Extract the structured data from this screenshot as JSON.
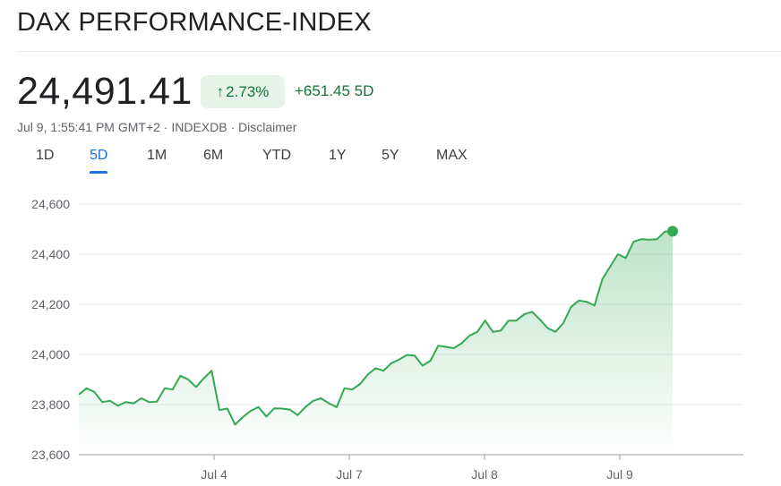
{
  "header": {
    "title": "DAX PERFORMANCE-INDEX",
    "price": "24,491.41",
    "change_pct": "2.73%",
    "change_abs": "+651.45",
    "period": "5D",
    "timestamp": "Jul 9, 1:55:41 PM GMT+2",
    "source": "INDEXDB",
    "disclaimer": "Disclaimer",
    "up_arrow": "arrow-up-icon"
  },
  "tabs": [
    "1D",
    "5D",
    "1M",
    "6M",
    "YTD",
    "1Y",
    "5Y",
    "MAX"
  ],
  "active_tab": "5D",
  "colors": {
    "line": "#34a853",
    "up_text": "#137333",
    "badge_bg": "#e6f4ea",
    "accent": "#1a73e8"
  },
  "chart_data": {
    "type": "area",
    "ylim": [
      23600,
      24600
    ],
    "yticks": [
      23600,
      23800,
      24000,
      24200,
      24400,
      24600
    ],
    "ytick_labels": [
      "23,600",
      "23,800",
      "24,000",
      "24,200",
      "24,400",
      "24,600"
    ],
    "xtick_labels": [
      "Jul 4",
      "Jul 7",
      "Jul 8",
      "Jul 9"
    ],
    "grid": true,
    "series": [
      {
        "values": [
          23840,
          23865,
          23850,
          23810,
          23815,
          23795,
          23810,
          23805,
          23825,
          23810,
          23812,
          23865,
          23860,
          23915,
          23900,
          23870,
          23905,
          23935,
          23778,
          23784,
          23720,
          23750,
          23775,
          23790,
          23752,
          23785,
          23784,
          23780,
          23758,
          23790,
          23815,
          23825,
          23805,
          23790,
          23865,
          23860,
          23882,
          23920,
          23945,
          23935,
          23965,
          23980,
          23998,
          23995,
          23955,
          23975,
          24035,
          24030,
          24025,
          24045,
          24075,
          24090,
          24135,
          24090,
          24095,
          24135,
          24135,
          24160,
          24170,
          24140,
          24105,
          24090,
          24125,
          24190,
          24215,
          24210,
          24195,
          24300,
          24350,
          24400,
          24385,
          24450,
          24460,
          24458,
          24460,
          24490,
          24491.41
        ]
      }
    ]
  }
}
